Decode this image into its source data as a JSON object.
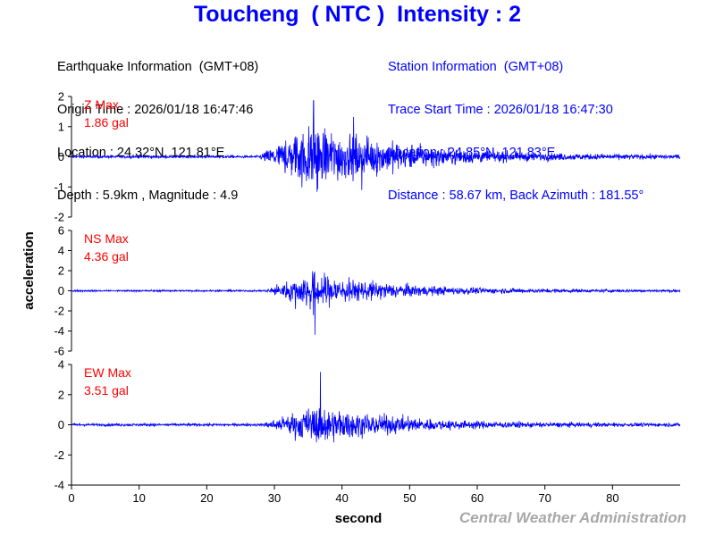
{
  "title": "Toucheng  ( NTC )  Intensity : 2",
  "earthquake_info": {
    "header": "Earthquake Information  (GMT+08)",
    "origin_time": "Origin Time : 2026/01/18 16:47:46",
    "location": "Location : 24.32°N, 121.81°E",
    "depth_magnitude": "Depth : 5.9km , Magnitude : 4.9"
  },
  "station_info": {
    "header": "Station Information  (GMT+08)",
    "trace_start": "Trace Start Time : 2026/01/18 16:47:30",
    "location": "Location : 24.85°N, 121.83°E",
    "distance": "Distance : 58.67 km, Back Azimuth : 181.55°"
  },
  "footer": "Central Weather Administration",
  "colors": {
    "trace": "#0000ff",
    "label": "#ff0000",
    "axis": "#000000",
    "title": "#0000ff"
  },
  "chart_data": {
    "type": "line",
    "xlabel": "second",
    "ylabel": "acceleration",
    "xlim": [
      0,
      90
    ],
    "xticks": [
      0,
      10,
      20,
      30,
      40,
      50,
      60,
      70,
      80
    ],
    "grid": false,
    "series": [
      {
        "name": "Z",
        "label1": "Z Max",
        "label2": "1.86 gal",
        "max": 1.86,
        "ylim": [
          -2,
          2
        ],
        "yticks": [
          -2,
          -1,
          0,
          1,
          2
        ],
        "ytick_labels": [
          "-2",
          "-1",
          "0",
          "1",
          "2"
        ],
        "onset": 27.6,
        "peak_time": 35.8,
        "noise": 0.03,
        "decay": 10.5,
        "strong": 1.35
      },
      {
        "name": "NS",
        "label1": "NS Max",
        "label2": "4.36 gal",
        "max": 4.36,
        "ylim": [
          -6,
          6
        ],
        "yticks": [
          -6,
          -4,
          -2,
          0,
          2,
          4,
          6
        ],
        "ytick_labels": [
          "-6",
          "-4",
          "-2",
          "0",
          "2",
          "4",
          "6"
        ],
        "onset": 28.5,
        "peak_time": 36.0,
        "noise": 0.06,
        "decay": 9.0,
        "strong": 1.9
      },
      {
        "name": "EW",
        "label1": "EW Max",
        "label2": "3.51 gal",
        "max": 3.51,
        "ylim": [
          -4,
          4
        ],
        "yticks": [
          -4,
          -2,
          0,
          2,
          4
        ],
        "ytick_labels": [
          "-4",
          "-2",
          "0",
          "2",
          "4"
        ],
        "onset": 28.0,
        "peak_time": 36.8,
        "noise": 0.06,
        "decay": 9.5,
        "strong": 2.3
      }
    ]
  }
}
